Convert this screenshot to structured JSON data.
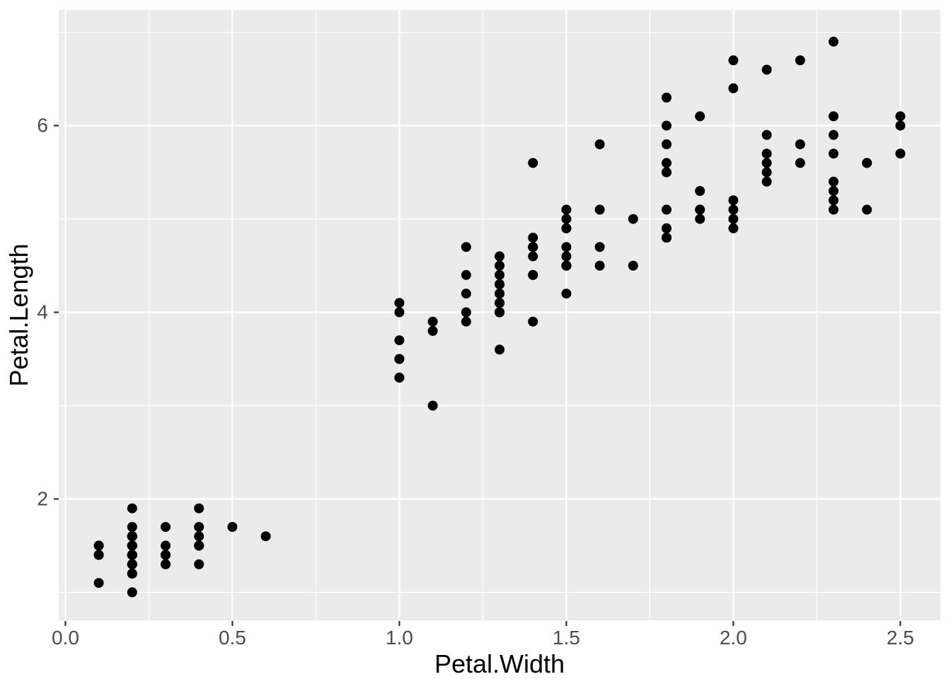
{
  "chart_data": {
    "type": "scatter",
    "title": "",
    "xlabel": "Petal.Width",
    "ylabel": "Petal.Length",
    "xlim": [
      -0.02,
      2.62
    ],
    "ylim": [
      0.7,
      7.24
    ],
    "x_major_breaks": [
      0.0,
      0.5,
      1.0,
      1.5,
      2.0,
      2.5
    ],
    "x_tick_labels": [
      "0.0",
      "0.5",
      "1.0",
      "1.5",
      "2.0",
      "2.5"
    ],
    "x_minor_breaks": [
      0.25,
      0.75,
      1.25,
      1.75,
      2.25
    ],
    "y_major_breaks": [
      2,
      4,
      6
    ],
    "y_tick_labels": [
      "2",
      "4",
      "6"
    ],
    "y_minor_breaks": [
      1,
      3,
      5,
      7
    ],
    "grid": "on",
    "legend": "none",
    "theme": {
      "panel_bg": "#EBEBEB",
      "grid_color": "#FFFFFF",
      "point_color": "#000000",
      "tick_mark_color": "#333333",
      "tick_label_color": "#4D4D4D",
      "axis_title_color": "#000000",
      "outer_bg": "#FFFFFF"
    },
    "point_radius_px": 7,
    "points": [
      [
        0.2,
        1.4
      ],
      [
        0.2,
        1.4
      ],
      [
        0.2,
        1.3
      ],
      [
        0.2,
        1.5
      ],
      [
        0.2,
        1.4
      ],
      [
        0.4,
        1.7
      ],
      [
        0.3,
        1.4
      ],
      [
        0.2,
        1.5
      ],
      [
        0.2,
        1.4
      ],
      [
        0.1,
        1.5
      ],
      [
        0.2,
        1.5
      ],
      [
        0.2,
        1.6
      ],
      [
        0.1,
        1.4
      ],
      [
        0.1,
        1.1
      ],
      [
        0.2,
        1.2
      ],
      [
        0.4,
        1.5
      ],
      [
        0.4,
        1.3
      ],
      [
        0.3,
        1.4
      ],
      [
        0.3,
        1.7
      ],
      [
        0.3,
        1.5
      ],
      [
        0.2,
        1.7
      ],
      [
        0.4,
        1.5
      ],
      [
        0.2,
        1.0
      ],
      [
        0.5,
        1.7
      ],
      [
        0.2,
        1.9
      ],
      [
        0.2,
        1.6
      ],
      [
        0.4,
        1.6
      ],
      [
        0.2,
        1.5
      ],
      [
        0.2,
        1.4
      ],
      [
        0.2,
        1.6
      ],
      [
        0.2,
        1.6
      ],
      [
        0.4,
        1.5
      ],
      [
        0.1,
        1.5
      ],
      [
        0.2,
        1.4
      ],
      [
        0.2,
        1.5
      ],
      [
        0.2,
        1.2
      ],
      [
        0.2,
        1.3
      ],
      [
        0.1,
        1.4
      ],
      [
        0.2,
        1.3
      ],
      [
        0.2,
        1.5
      ],
      [
        0.3,
        1.3
      ],
      [
        0.3,
        1.3
      ],
      [
        0.2,
        1.3
      ],
      [
        0.6,
        1.6
      ],
      [
        0.4,
        1.9
      ],
      [
        0.3,
        1.4
      ],
      [
        0.2,
        1.6
      ],
      [
        0.2,
        1.4
      ],
      [
        0.2,
        1.5
      ],
      [
        0.2,
        1.4
      ],
      [
        1.4,
        4.7
      ],
      [
        1.5,
        4.5
      ],
      [
        1.5,
        4.9
      ],
      [
        1.3,
        4.0
      ],
      [
        1.5,
        4.6
      ],
      [
        1.3,
        4.5
      ],
      [
        1.6,
        4.7
      ],
      [
        1.0,
        3.3
      ],
      [
        1.3,
        4.6
      ],
      [
        1.4,
        3.9
      ],
      [
        1.0,
        3.5
      ],
      [
        1.5,
        4.2
      ],
      [
        1.0,
        4.0
      ],
      [
        1.4,
        4.7
      ],
      [
        1.3,
        3.6
      ],
      [
        1.4,
        4.4
      ],
      [
        1.5,
        4.5
      ],
      [
        1.0,
        4.1
      ],
      [
        1.5,
        4.5
      ],
      [
        1.1,
        3.9
      ],
      [
        1.8,
        4.8
      ],
      [
        1.3,
        4.0
      ],
      [
        1.5,
        4.9
      ],
      [
        1.2,
        4.7
      ],
      [
        1.3,
        4.3
      ],
      [
        1.4,
        4.4
      ],
      [
        1.4,
        4.8
      ],
      [
        1.7,
        5.0
      ],
      [
        1.5,
        4.5
      ],
      [
        1.0,
        3.5
      ],
      [
        1.1,
        3.8
      ],
      [
        1.0,
        3.7
      ],
      [
        1.2,
        3.9
      ],
      [
        1.6,
        5.1
      ],
      [
        1.5,
        4.5
      ],
      [
        1.6,
        4.5
      ],
      [
        1.5,
        4.7
      ],
      [
        1.3,
        4.4
      ],
      [
        1.3,
        4.1
      ],
      [
        1.3,
        4.0
      ],
      [
        1.2,
        4.4
      ],
      [
        1.4,
        4.6
      ],
      [
        1.2,
        4.0
      ],
      [
        1.0,
        3.3
      ],
      [
        1.3,
        4.2
      ],
      [
        1.2,
        4.2
      ],
      [
        1.3,
        4.2
      ],
      [
        1.3,
        4.3
      ],
      [
        1.1,
        3.0
      ],
      [
        1.3,
        4.1
      ],
      [
        2.5,
        6.0
      ],
      [
        1.9,
        5.1
      ],
      [
        2.1,
        5.9
      ],
      [
        1.8,
        5.6
      ],
      [
        2.2,
        5.8
      ],
      [
        2.1,
        6.6
      ],
      [
        1.7,
        4.5
      ],
      [
        1.8,
        6.3
      ],
      [
        1.8,
        5.8
      ],
      [
        2.5,
        6.1
      ],
      [
        2.0,
        5.1
      ],
      [
        1.9,
        5.3
      ],
      [
        2.1,
        5.5
      ],
      [
        2.0,
        5.0
      ],
      [
        2.4,
        5.1
      ],
      [
        2.3,
        5.3
      ],
      [
        1.8,
        5.5
      ],
      [
        2.2,
        6.7
      ],
      [
        2.3,
        6.9
      ],
      [
        1.5,
        5.0
      ],
      [
        2.3,
        5.7
      ],
      [
        2.0,
        4.9
      ],
      [
        2.0,
        6.7
      ],
      [
        1.8,
        4.9
      ],
      [
        2.1,
        5.7
      ],
      [
        1.8,
        6.0
      ],
      [
        1.8,
        4.8
      ],
      [
        1.8,
        4.9
      ],
      [
        2.1,
        5.6
      ],
      [
        1.6,
        5.8
      ],
      [
        1.9,
        6.1
      ],
      [
        2.0,
        6.4
      ],
      [
        2.2,
        5.6
      ],
      [
        1.5,
        5.1
      ],
      [
        1.4,
        5.6
      ],
      [
        2.3,
        6.1
      ],
      [
        2.4,
        5.6
      ],
      [
        1.8,
        5.5
      ],
      [
        1.8,
        4.8
      ],
      [
        2.1,
        5.4
      ],
      [
        2.4,
        5.6
      ],
      [
        2.3,
        5.1
      ],
      [
        1.9,
        5.1
      ],
      [
        2.3,
        5.9
      ],
      [
        2.5,
        5.7
      ],
      [
        2.3,
        5.2
      ],
      [
        1.9,
        5.0
      ],
      [
        2.0,
        5.2
      ],
      [
        2.3,
        5.4
      ],
      [
        1.8,
        5.1
      ]
    ]
  }
}
